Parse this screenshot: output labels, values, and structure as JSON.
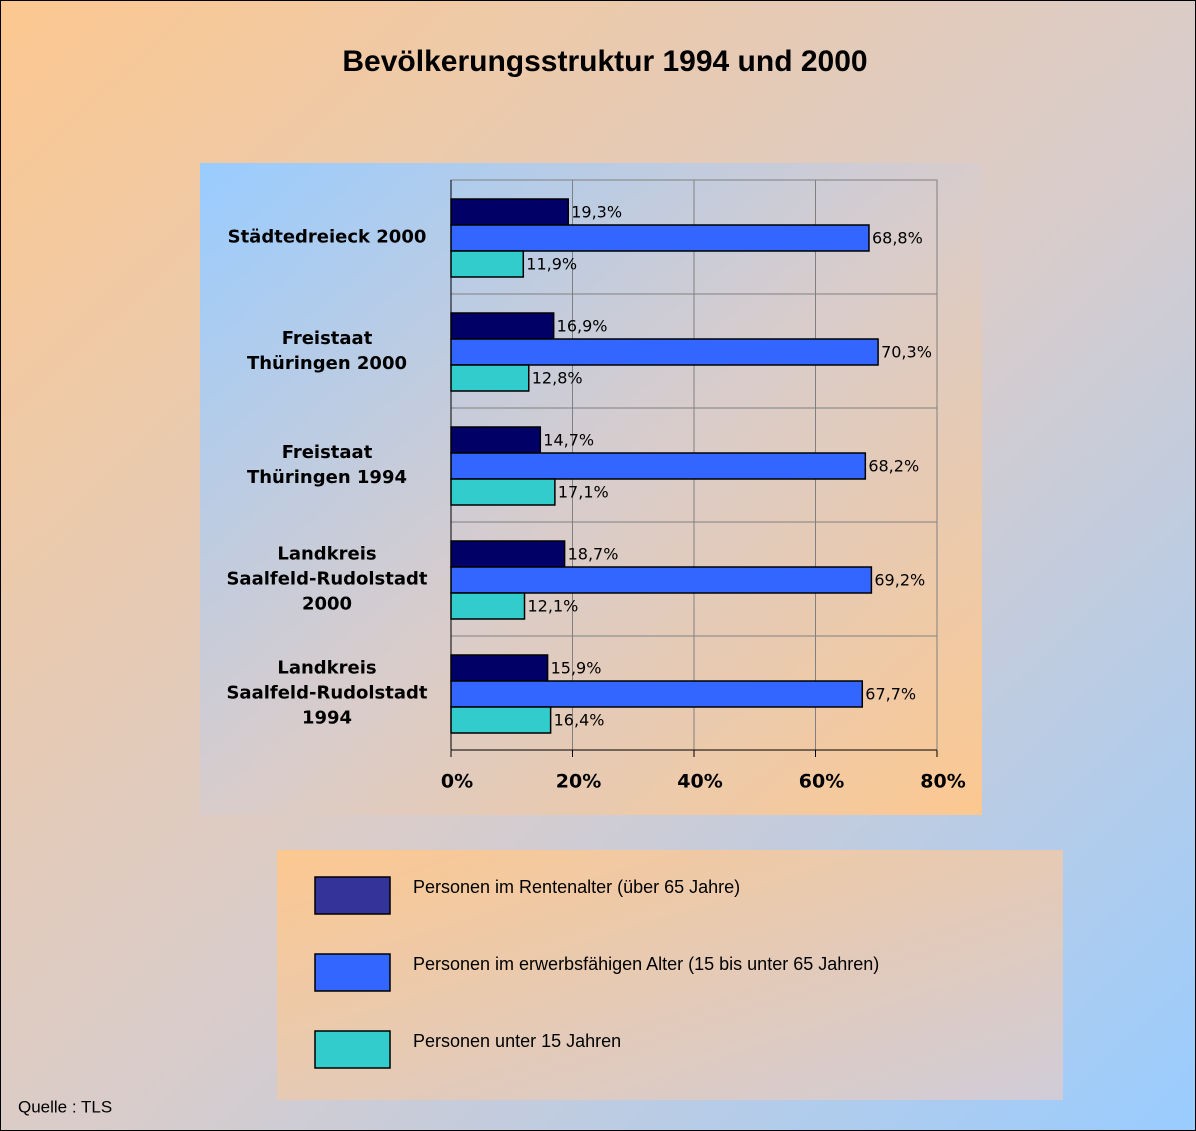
{
  "chart_data": {
    "type": "bar",
    "orientation": "horizontal",
    "title": "Bevölkerungsstruktur 1994 und 2000",
    "source": "Quelle : TLS",
    "categories": [
      "Städtedreieck 2000",
      "Freistaat\nThüringen 2000",
      "Freistaat\nThüringen 1994",
      "Landkreis\nSaalfeld-Rudolstadt\n2000",
      "Landkreis\nSaalfeld-Rudolstadt\n1994"
    ],
    "series": [
      {
        "name": "Personen im Rentenalter (über 65 Jahre)",
        "color": "#000066",
        "legend_color": "#333399",
        "values": [
          19.3,
          16.9,
          14.7,
          18.7,
          15.9
        ],
        "value_labels": [
          "19,3%",
          "16,9%",
          "14,7%",
          "18,7%",
          "15,9%"
        ]
      },
      {
        "name": "Personen im erwerbsfähigen Alter (15 bis unter 65 Jahren)",
        "color": "#3366ff",
        "values": [
          68.8,
          70.3,
          68.2,
          69.2,
          67.7
        ],
        "value_labels": [
          "68,8%",
          "70,3%",
          "68,2%",
          "69,2%",
          "67,7%"
        ]
      },
      {
        "name": "Personen unter 15 Jahren",
        "color": "#33cccc",
        "values": [
          11.9,
          12.8,
          17.1,
          12.1,
          16.4
        ],
        "value_labels": [
          "11,9%",
          "12,8%",
          "17,1%",
          "12,1%",
          "16,4%"
        ]
      }
    ],
    "xlim": [
      0,
      80
    ],
    "xticks": [
      {
        "value": 0,
        "label": "0%"
      },
      {
        "value": 20,
        "label": "20%"
      },
      {
        "value": 40,
        "label": "40%"
      },
      {
        "value": 60,
        "label": "60%"
      },
      {
        "value": 80,
        "label": "80%"
      }
    ],
    "grid": true
  }
}
